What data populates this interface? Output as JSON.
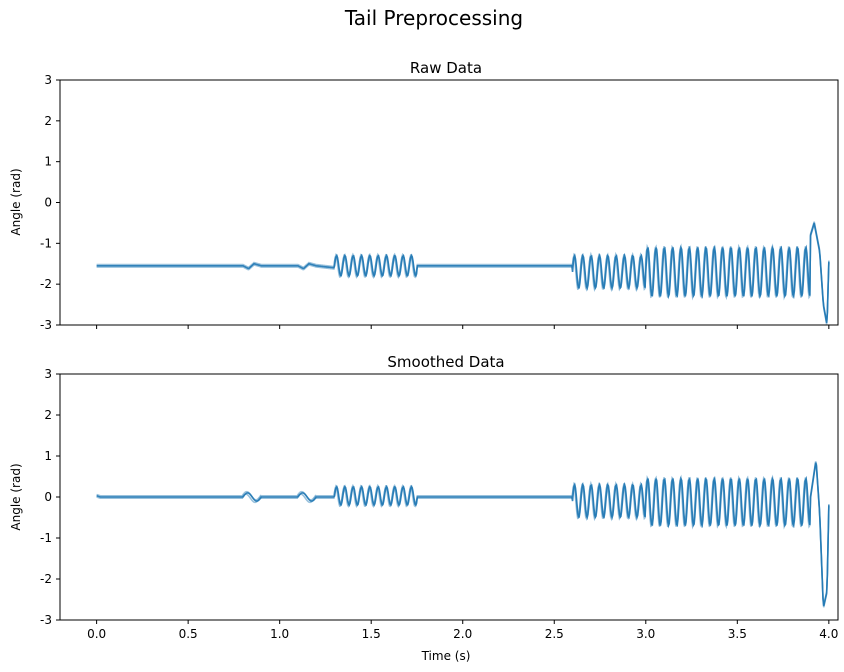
{
  "figure": {
    "title": "Tail Preprocessing"
  },
  "chart_data": [
    {
      "type": "line",
      "title": "Raw Data",
      "xlabel": "",
      "ylabel": "Angle (rad)",
      "xlim": [
        -0.2,
        4.05
      ],
      "ylim": [
        -3,
        3
      ],
      "xticks": [
        0.0,
        0.5,
        1.0,
        1.5,
        2.0,
        2.5,
        3.0,
        3.5,
        4.0
      ],
      "xtick_labels_shown": false,
      "yticks": [
        -3,
        -2,
        -1,
        0,
        1,
        2,
        3
      ],
      "grid": false,
      "color": "#1f77b4",
      "series": [
        {
          "x": [
            0.0,
            0.8,
            0.83,
            0.86,
            0.9,
            1.1,
            1.13,
            1.16,
            1.2,
            1.3,
            1.4,
            1.5,
            1.6,
            1.7,
            1.73,
            1.76,
            2.6,
            2.65,
            2.8,
            3.0,
            3.3,
            3.6,
            3.75,
            3.85,
            3.9,
            3.92,
            3.95,
            3.97,
            3.99,
            4.0
          ],
          "y": [
            -1.55,
            -1.55,
            -1.62,
            -1.5,
            -1.55,
            -1.55,
            -1.62,
            -1.5,
            -1.55,
            -1.6,
            -1.45,
            -1.38,
            -1.35,
            -1.6,
            -1.55,
            -1.55,
            -1.55,
            -1.6,
            -1.5,
            -1.45,
            -1.4,
            -1.3,
            -1.2,
            -1.15,
            -0.8,
            -0.5,
            -1.2,
            -2.5,
            -3.0,
            -1.45
          ],
          "oscillation_envelope": [
            {
              "x_start": 1.3,
              "x_end": 1.75,
              "min": -1.8,
              "max": -1.3
            },
            {
              "x_start": 2.6,
              "x_end": 3.0,
              "min": -2.1,
              "max": -1.3
            },
            {
              "x_start": 3.0,
              "x_end": 3.9,
              "min": -2.3,
              "max": -1.1
            }
          ]
        }
      ]
    },
    {
      "type": "line",
      "title": "Smoothed Data",
      "xlabel": "Time (s)",
      "ylabel": "Angle (rad)",
      "xlim": [
        -0.2,
        4.05
      ],
      "ylim": [
        -3,
        3
      ],
      "xticks": [
        0.0,
        0.5,
        1.0,
        1.5,
        2.0,
        2.5,
        3.0,
        3.5,
        4.0
      ],
      "xtick_labels": [
        "0.0",
        "0.5",
        "1.0",
        "1.5",
        "2.0",
        "2.5",
        "3.0",
        "3.5",
        "4.0"
      ],
      "yticks": [
        -3,
        -2,
        -1,
        0,
        1,
        2,
        3
      ],
      "grid": false,
      "color": "#1f77b4",
      "series": [
        {
          "x": [
            0.0,
            0.02,
            0.8,
            1.1,
            1.3,
            1.75,
            2.6,
            3.9,
            3.93,
            3.95,
            3.97,
            3.99,
            4.0
          ],
          "y": [
            0.03,
            0.0,
            0.0,
            0.0,
            0.0,
            0.0,
            0.0,
            0.0,
            0.9,
            -0.4,
            -2.7,
            -2.3,
            -0.2
          ],
          "oscillation_envelope": [
            {
              "x_start": 0.8,
              "x_end": 0.9,
              "min": -0.1,
              "max": 0.1
            },
            {
              "x_start": 1.1,
              "x_end": 1.2,
              "min": -0.1,
              "max": 0.1
            },
            {
              "x_start": 1.3,
              "x_end": 1.75,
              "min": -0.2,
              "max": 0.25
            },
            {
              "x_start": 2.6,
              "x_end": 3.0,
              "min": -0.5,
              "max": 0.3
            },
            {
              "x_start": 3.0,
              "x_end": 3.9,
              "min": -0.7,
              "max": 0.45
            }
          ]
        }
      ]
    }
  ]
}
